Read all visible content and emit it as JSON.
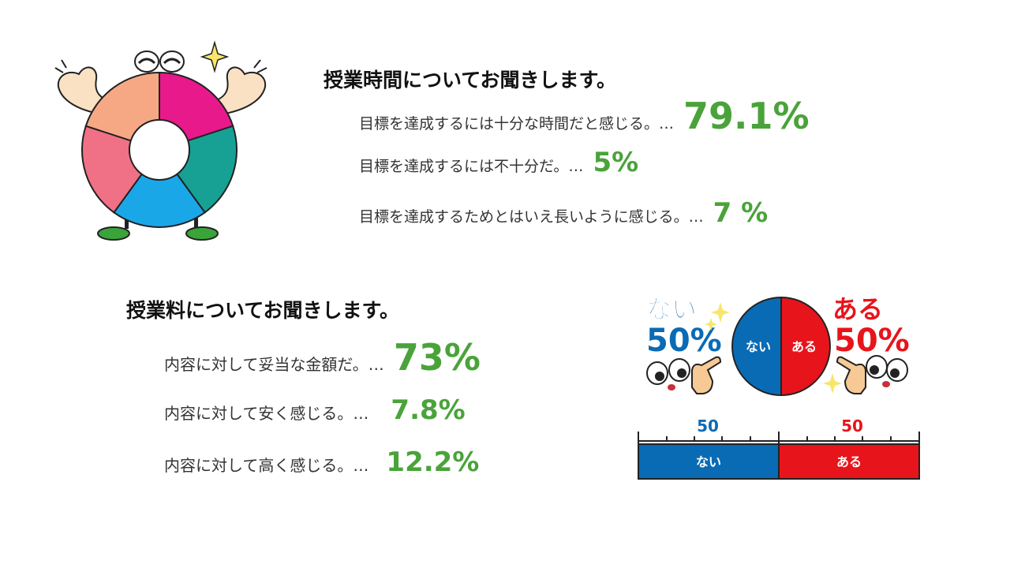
{
  "colors": {
    "accent_green": "#4aa33a",
    "nai_blue": "#0a6bb5",
    "aru_red": "#e8141b",
    "donut_magenta": "#e8198b",
    "donut_teal": "#17a195",
    "donut_blue": "#1aa7e8",
    "donut_pink": "#f07186",
    "donut_peach": "#f6a885"
  },
  "section1": {
    "heading": "授業時間についてお聞きします。",
    "items": [
      {
        "label": "目標を達成するには十分な時間だと感じる。…",
        "value": "79.1%"
      },
      {
        "label": "目標を達成するには不十分だ。…",
        "value": "5%"
      },
      {
        "label": "目標を達成するためとはいえ長いように感じる。…",
        "value": "7 %"
      }
    ]
  },
  "section2": {
    "heading": "授業料についてお聞きします。",
    "items": [
      {
        "label": "内容に対して妥当な金額だ。…",
        "value": "73%"
      },
      {
        "label": "内容に対して安く感じる。…",
        "value": "7.8%"
      },
      {
        "label": "内容に対して高く感じる。…",
        "value": "12.2%"
      }
    ]
  },
  "illustration_aru_nai": {
    "nai_word": "ない",
    "nai_pct": "50%",
    "aru_word": "ある",
    "aru_pct": "50%",
    "pie_nai": "ない",
    "pie_aru": "ある",
    "scale_left_value": "50",
    "scale_right_value": "50",
    "bar_nai": "ない",
    "bar_aru": "ある"
  }
}
